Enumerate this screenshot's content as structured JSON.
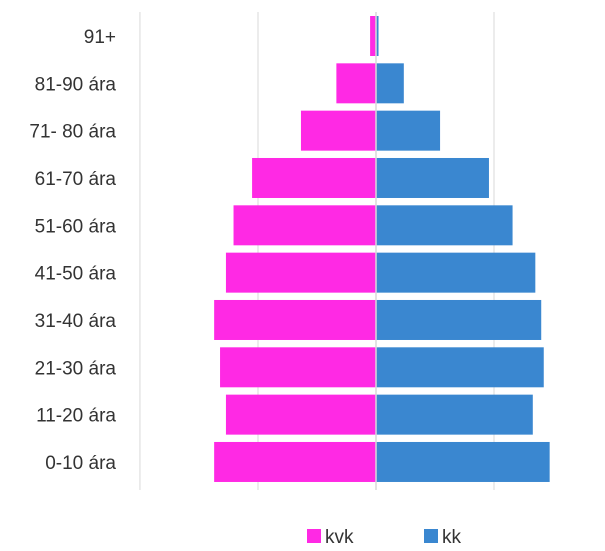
{
  "chart_data": {
    "type": "bar",
    "orientation": "horizontal",
    "layout": "population-pyramid",
    "categories": [
      "91+",
      "81-90 ára",
      "71- 80 ára",
      "61-70 ára",
      "51-60 ára",
      "41-50 ára",
      "31-40 ára",
      "21-30 ára",
      "11-20 ára",
      "0-10 ára"
    ],
    "series": [
      {
        "name": "kvk",
        "color": "#FF29E4",
        "side": "left",
        "values": [
          0.7,
          4.7,
          8.9,
          14.7,
          16.9,
          17.8,
          19.2,
          18.5,
          17.8,
          19.2
        ]
      },
      {
        "name": "kk",
        "color": "#3A87D0",
        "side": "right",
        "values": [
          0.3,
          3.3,
          7.6,
          13.4,
          16.2,
          18.9,
          19.6,
          19.9,
          18.6,
          20.6
        ]
      }
    ],
    "xlim": [
      -28,
      28
    ],
    "gridlines": [
      -28,
      -14,
      0,
      14,
      28
    ],
    "grid": true,
    "legend_position": "bottom",
    "title": "",
    "xlabel": "",
    "ylabel": ""
  }
}
